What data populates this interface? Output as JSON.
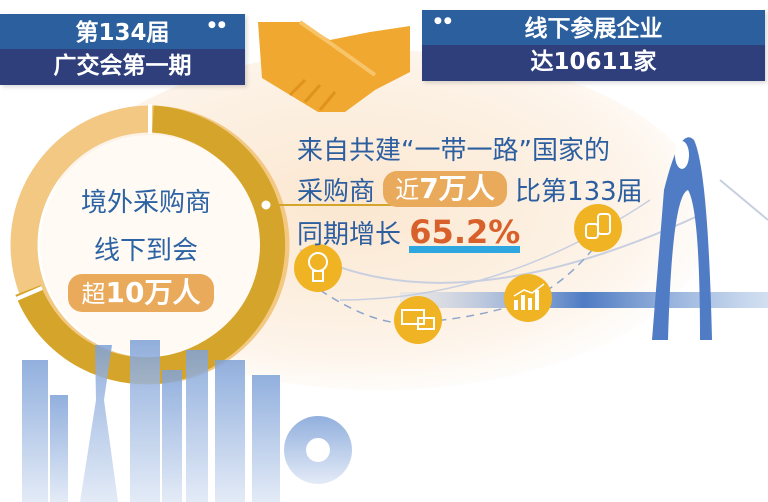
{
  "left_banner": {
    "line1": "第134届",
    "line2": "广交会第一期"
  },
  "right_banner": {
    "line1": "线下参展企业",
    "line2": "达10611家"
  },
  "ring": {
    "line1": "境外采购商",
    "line2": "线下到会",
    "highlight_prefix": "超",
    "highlight_value": "10万人"
  },
  "info": {
    "line1": "来自共建“一带一路”国家的",
    "line2_prefix": "采购商",
    "line2_pill_prefix": "近",
    "line2_pill_value": "7万人",
    "line2_suffix": "比第133届",
    "line3_prefix": "同期增长",
    "line3_value": "65.2%"
  },
  "icons": [
    "handshake-icon",
    "lightbulb-icon",
    "chat-icon",
    "bar-chart-icon",
    "coins-icon",
    "bridge-illustration",
    "cityscape-illustration"
  ],
  "colors": {
    "banner_top": "#2c5f9e",
    "banner_bottom": "#2e3f7c",
    "gold": "#d4a52a",
    "light_gold": "#f2c882",
    "pill": "#e9aa5c",
    "text_blue": "#2d5fa0",
    "percent": "#d8602a",
    "icon_yellow": "#f0b323",
    "bridge": "#4f7cc4"
  }
}
